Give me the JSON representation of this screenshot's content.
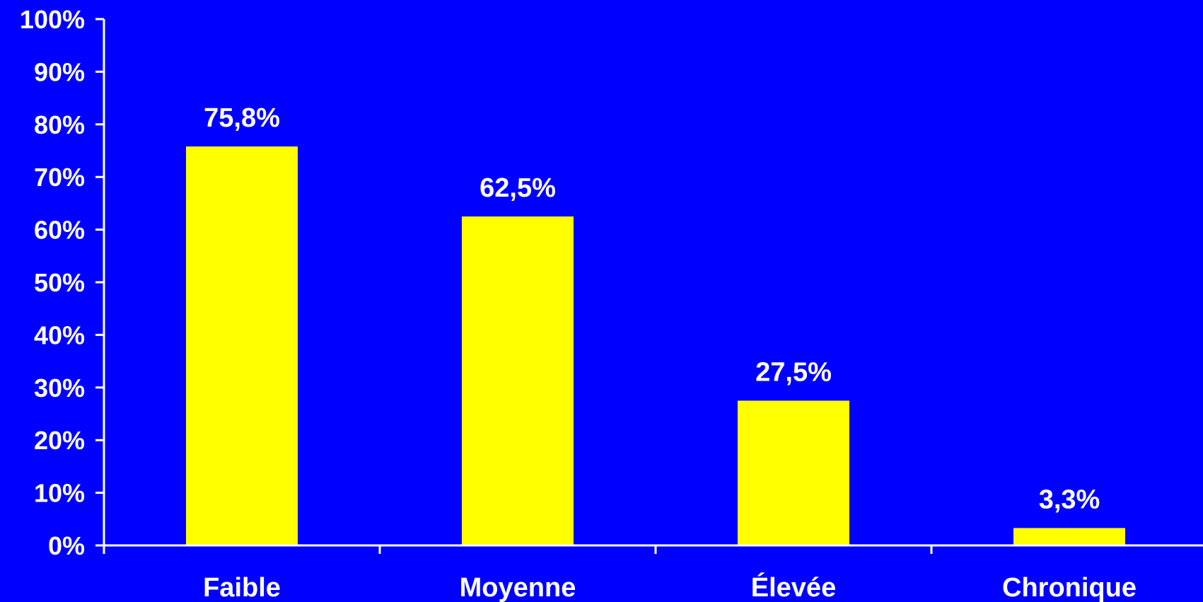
{
  "chart_data": {
    "type": "bar",
    "title": "",
    "xlabel": "",
    "ylabel": "",
    "categories": [
      "Faible",
      "Moyenne",
      "Élevée",
      "Chronique"
    ],
    "values": [
      75.8,
      62.5,
      27.5,
      3.3
    ],
    "data_labels": [
      "75,8%",
      "62,5%",
      "27,5%",
      "3,3%"
    ],
    "ylim": [
      0,
      100
    ],
    "yticks": [
      0,
      10,
      20,
      30,
      40,
      50,
      60,
      70,
      80,
      90,
      100
    ],
    "ytick_labels": [
      "0%",
      "10%",
      "20%",
      "30%",
      "40%",
      "50%",
      "60%",
      "70%",
      "80%",
      "90%",
      "100%"
    ],
    "grid": false,
    "legend": "none",
    "colors": {
      "background": "#0000FF",
      "bar": "#FFFF00",
      "axis": "#FFFFFF",
      "text": "#FFFFFF"
    }
  }
}
